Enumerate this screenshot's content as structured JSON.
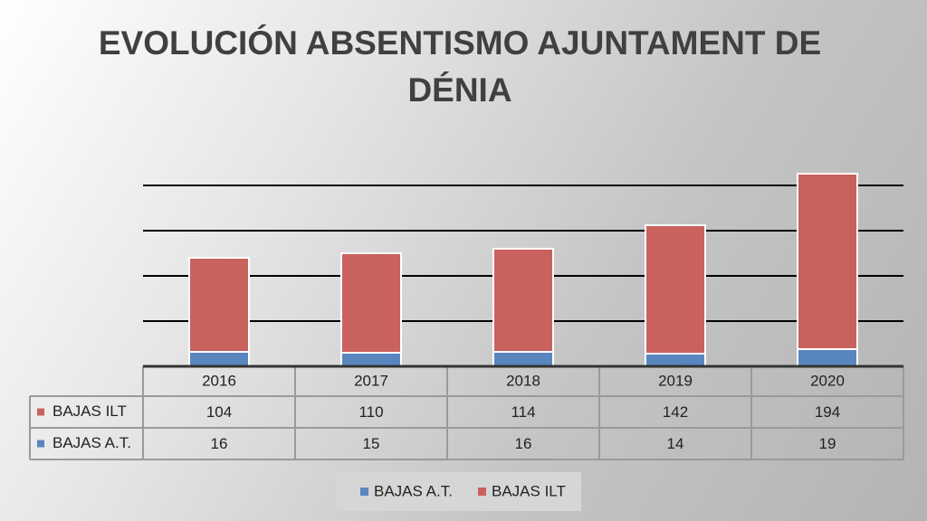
{
  "chart_data": {
    "type": "stacked_bar",
    "title": "EVOLUCIÓN ABSENTISMO AJUNTAMENT DE DÉNIA",
    "categories": [
      "2016",
      "2017",
      "2018",
      "2019",
      "2020"
    ],
    "series": [
      {
        "name": "BAJAS A.T.",
        "color": "#5a86bf",
        "values": [
          16,
          15,
          16,
          14,
          19
        ]
      },
      {
        "name": "BAJAS ILT",
        "color": "#c9625f",
        "values": [
          104,
          110,
          114,
          142,
          194
        ]
      }
    ],
    "ylim": [
      0,
      215
    ],
    "yticks": [
      0,
      50,
      100,
      150,
      200
    ],
    "grid": true
  }
}
